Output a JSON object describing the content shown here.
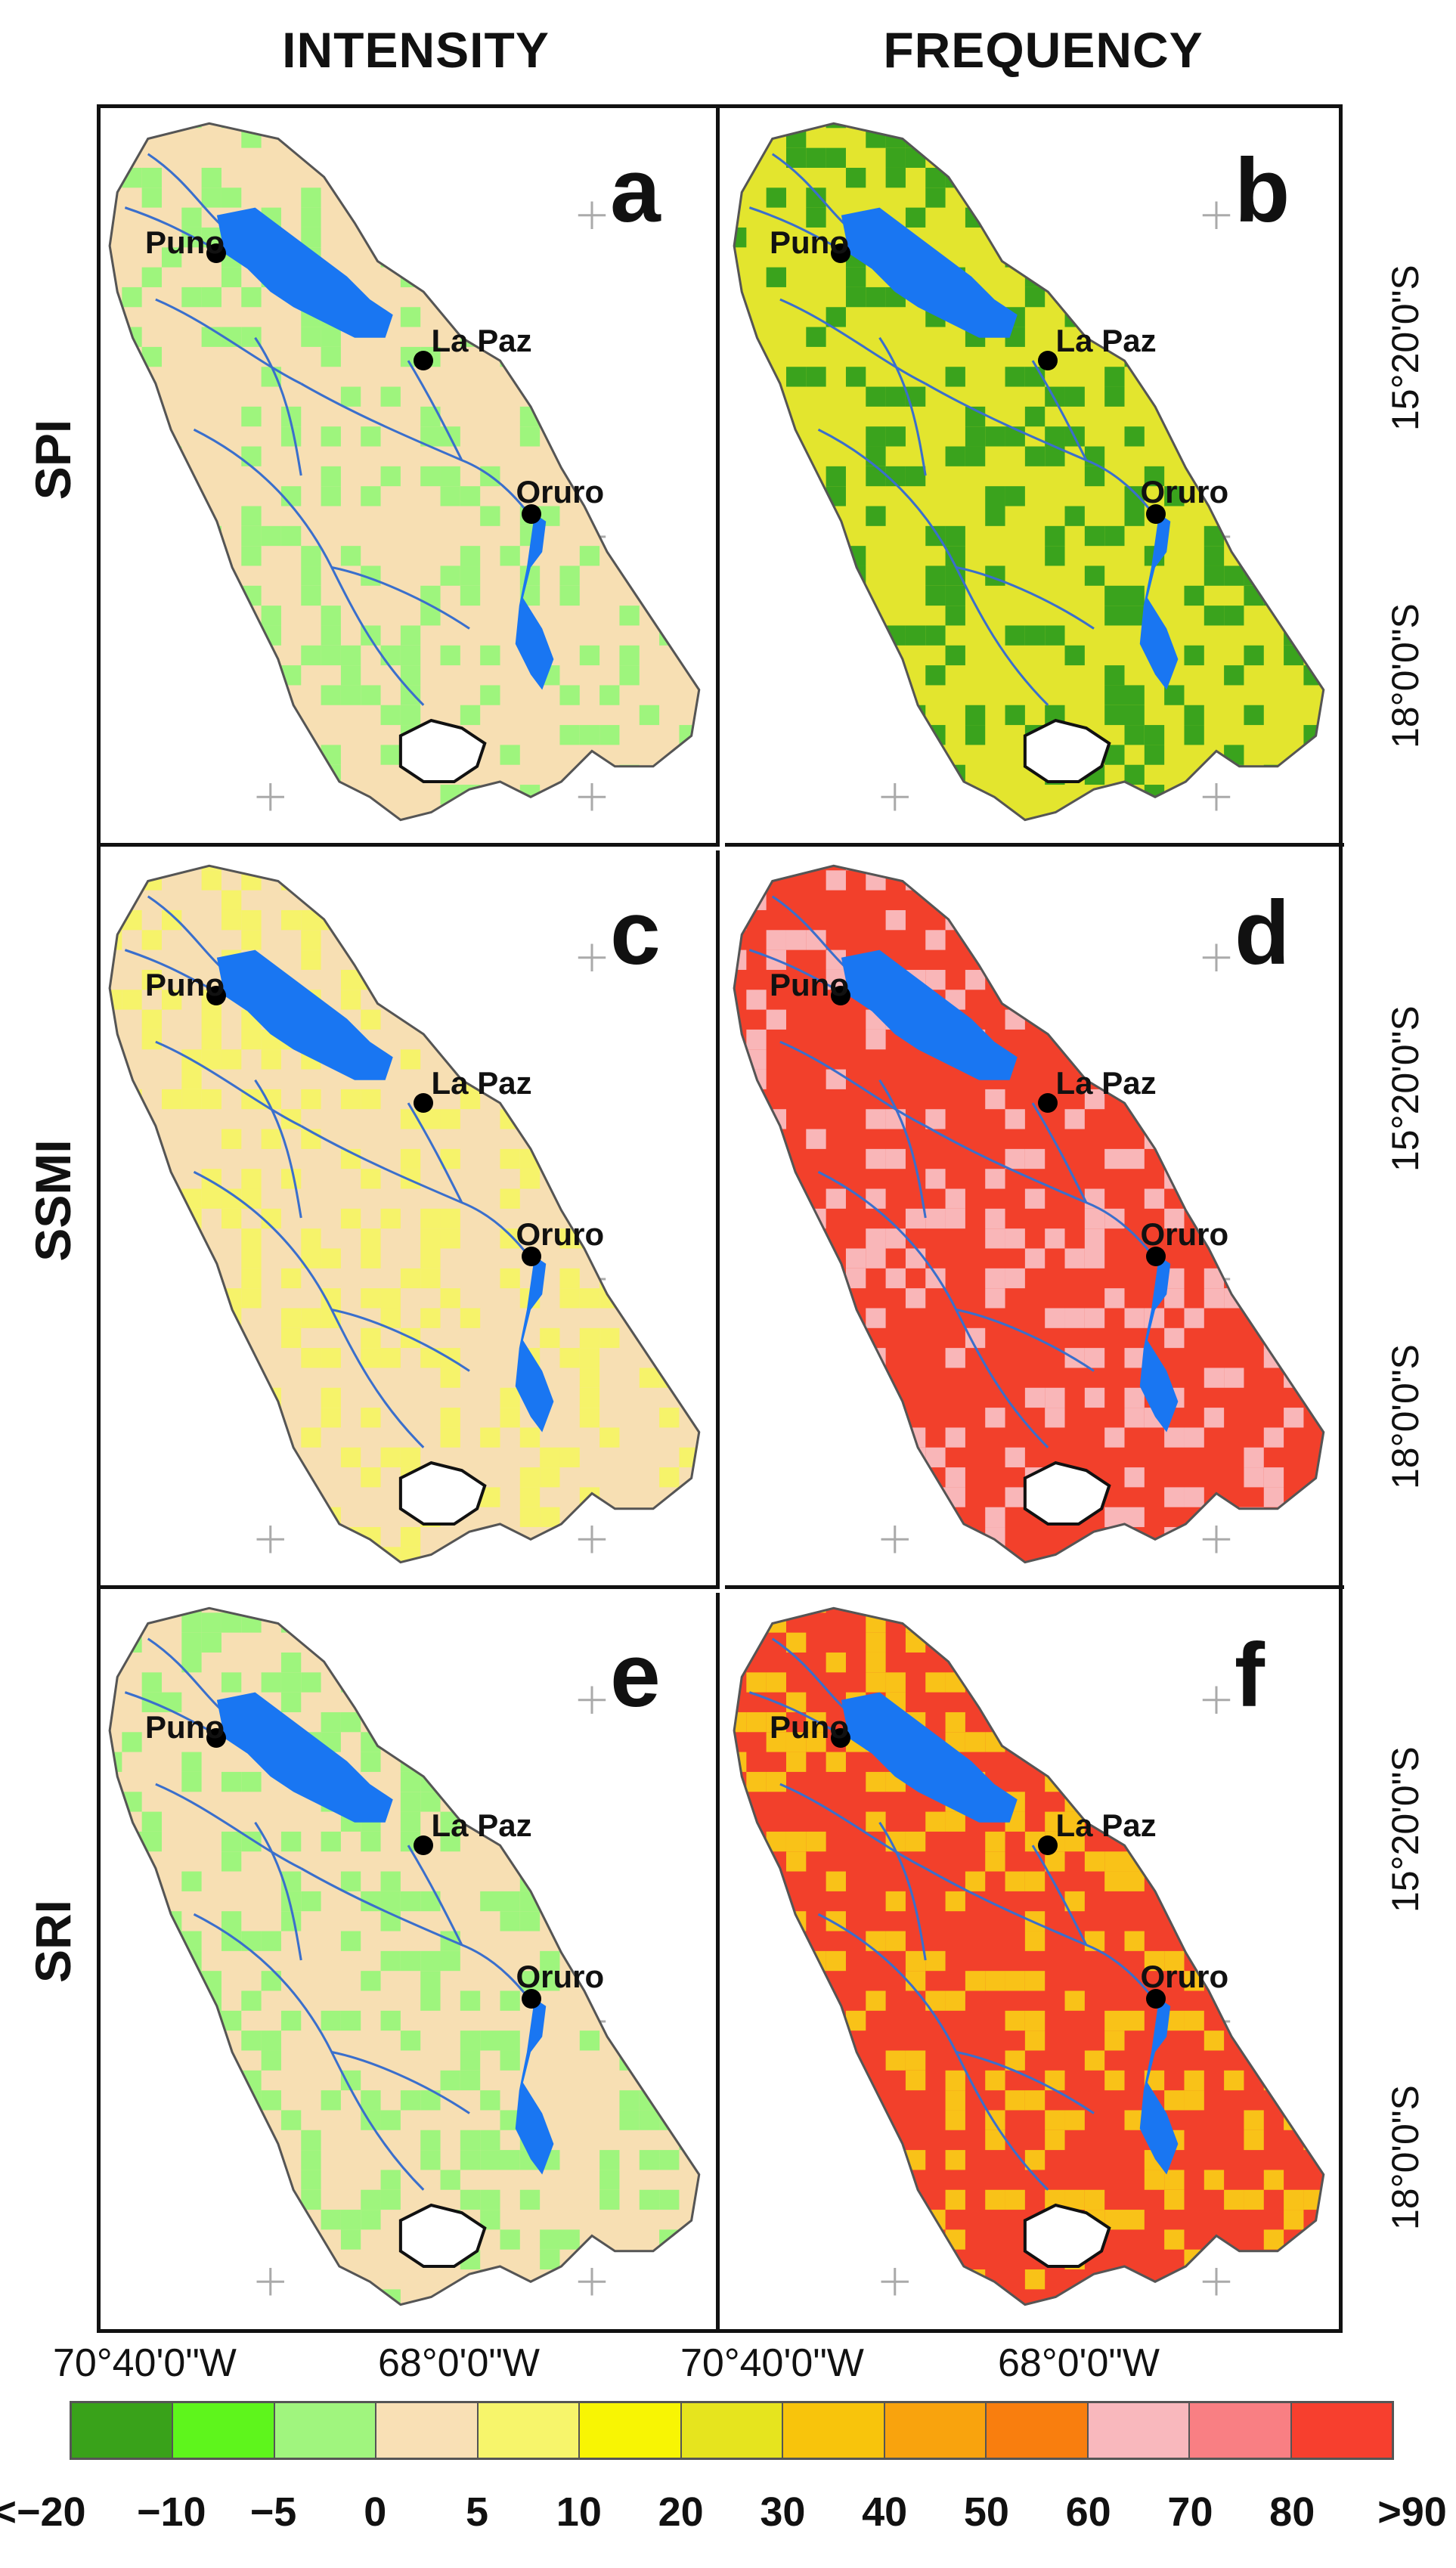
{
  "column_titles": {
    "left": "INTENSITY",
    "right": "FREQUENCY"
  },
  "row_titles": [
    "SPI",
    "SSMI",
    "SRI"
  ],
  "panels": [
    {
      "letter": "a",
      "index": "SPI",
      "metric": "INTENSITY",
      "fill": "#f7dfb3",
      "patch": "#9ef57d"
    },
    {
      "letter": "b",
      "index": "SPI",
      "metric": "FREQUENCY",
      "fill": "#e3e52e",
      "patch": "#3aa31d"
    },
    {
      "letter": "c",
      "index": "SSMI",
      "metric": "INTENSITY",
      "fill": "#f7dfb3",
      "patch": "#f6f36a"
    },
    {
      "letter": "d",
      "index": "SSMI",
      "metric": "FREQUENCY",
      "fill": "#f2402b",
      "patch": "#f9b6b8"
    },
    {
      "letter": "e",
      "index": "SRI",
      "metric": "INTENSITY",
      "fill": "#f7dfb3",
      "patch": "#9ef57d"
    },
    {
      "letter": "f",
      "index": "SRI",
      "metric": "FREQUENCY",
      "fill": "#f2402b",
      "patch": "#f9c218"
    }
  ],
  "cities": [
    "Puno",
    "La Paz",
    "Oruro"
  ],
  "latitude_labels": [
    "15°20'0\"S",
    "18°0'0\"S"
  ],
  "longitude_labels": [
    "70°40'0\"W",
    "68°0'0\"W",
    "70°40'0\"W",
    "68°0'0\"W"
  ],
  "legend": {
    "colors": [
      "#39a21a",
      "#5ef51c",
      "#a0f57e",
      "#f9e0b5",
      "#f7f56b",
      "#f8f503",
      "#e6e41e",
      "#f8c40c",
      "#f9a30d",
      "#f97e0e",
      "#f9b8bd",
      "#f97f83",
      "#f73f2e"
    ],
    "ticks": [
      "<−20",
      "−10",
      "−5",
      "0",
      "5",
      "10",
      "20",
      "30",
      "40",
      "50",
      "60",
      "70",
      "80",
      ">90"
    ]
  },
  "colors": {
    "lake": "#1976f2",
    "river": "#3a6fcc",
    "outline": "#555555"
  }
}
